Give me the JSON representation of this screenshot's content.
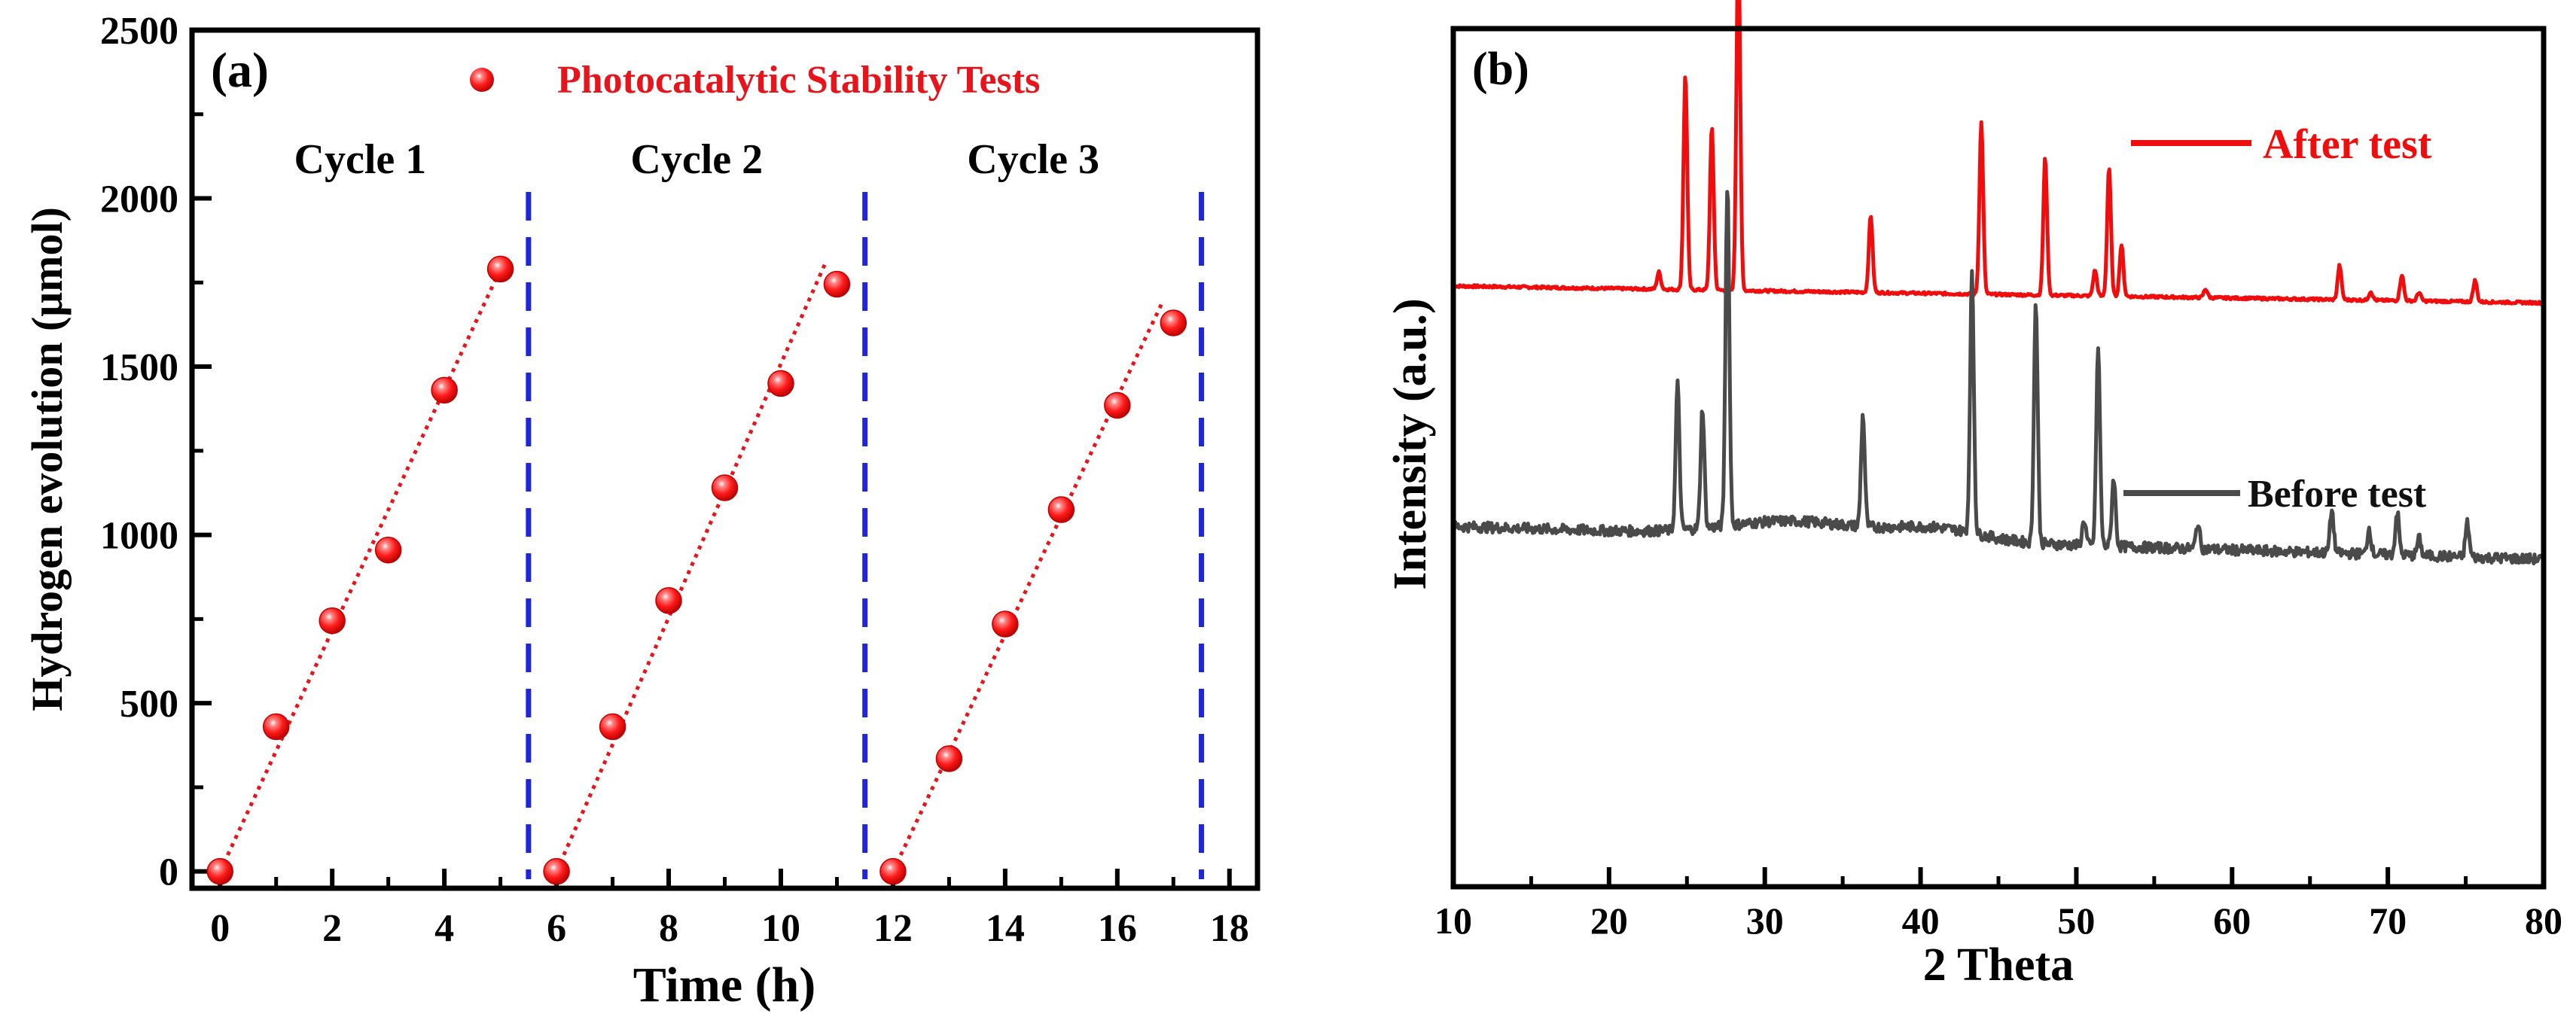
{
  "chart_data": [
    {
      "type": "scatter",
      "panel_label": "(a)",
      "title": "",
      "xlabel": "Time (h)",
      "ylabel": "Hydrogen evolution (μmol)",
      "xlim": [
        -0.5,
        18.5
      ],
      "ylim": [
        -50,
        2500
      ],
      "xticks": [
        0,
        2,
        4,
        6,
        8,
        10,
        12,
        14,
        16,
        18
      ],
      "yticks": [
        0,
        500,
        1000,
        1500,
        2000,
        2500
      ],
      "legend": {
        "label": "Photocatalytic Stability Tests",
        "position": "top-right"
      },
      "cycle_labels": [
        {
          "text": "Cycle 1",
          "x": 2.5
        },
        {
          "text": "Cycle 2",
          "x": 8.5
        },
        {
          "text": "Cycle 3",
          "x": 14.5
        }
      ],
      "dividers_x": [
        5.5,
        11.5,
        17.5
      ],
      "series": [
        {
          "name": "Cycle 1",
          "x": [
            0,
            1,
            2,
            3,
            4,
            5
          ],
          "y": [
            0,
            430,
            745,
            955,
            1430,
            1790
          ],
          "fit": [
            [
              0,
              0
            ],
            [
              5,
              1790
            ]
          ]
        },
        {
          "name": "Cycle 2",
          "x": [
            6,
            7,
            8,
            9,
            10,
            11
          ],
          "y": [
            0,
            430,
            805,
            1140,
            1450,
            1745
          ],
          "fit": [
            [
              6,
              0
            ],
            [
              10.8,
              1810
            ]
          ]
        },
        {
          "name": "Cycle 3",
          "x": [
            12,
            13,
            14,
            15,
            16,
            17
          ],
          "y": [
            0,
            335,
            735,
            1075,
            1385,
            1630
          ],
          "fit": [
            [
              12,
              0
            ],
            [
              16.8,
              1690
            ]
          ]
        }
      ],
      "colors": {
        "marker": "#e8141b",
        "fit": "#e8141b",
        "divider": "#1f26d9",
        "legend_text": "#e8141b"
      }
    },
    {
      "type": "line",
      "panel_label": "(b)",
      "title": "",
      "xlabel": "2 Theta",
      "ylabel": "Intensity (a.u.)",
      "xlim": [
        10,
        80
      ],
      "xticks": [
        10,
        20,
        30,
        40,
        50,
        60,
        70,
        80
      ],
      "series": [
        {
          "name": "After test",
          "color": "#f00d0d",
          "baseline": 0.7,
          "peaks": [
            [
              23.2,
              0.02
            ],
            [
              24.9,
              0.25
            ],
            [
              26.6,
              0.19
            ],
            [
              28.3,
              0.41
            ],
            [
              36.8,
              0.09
            ],
            [
              43.9,
              0.2
            ],
            [
              48.0,
              0.16
            ],
            [
              51.2,
              0.03
            ],
            [
              52.1,
              0.15
            ],
            [
              52.9,
              0.06
            ],
            [
              58.3,
              0.01
            ],
            [
              66.9,
              0.04
            ],
            [
              68.9,
              0.01
            ],
            [
              70.9,
              0.03
            ],
            [
              72.0,
              0.01
            ],
            [
              75.6,
              0.025
            ]
          ]
        },
        {
          "name": "Before test",
          "color": "#4a4a4a",
          "baseline": 0.42,
          "peaks": [
            [
              24.4,
              0.17
            ],
            [
              26.0,
              0.14
            ],
            [
              27.6,
              0.4
            ],
            [
              36.3,
              0.13
            ],
            [
              43.3,
              0.3
            ],
            [
              47.4,
              0.28
            ],
            [
              51.4,
              0.23
            ],
            [
              52.4,
              0.08
            ],
            [
              50.5,
              0.03
            ],
            [
              57.8,
              0.03
            ],
            [
              66.4,
              0.05
            ],
            [
              68.8,
              0.03
            ],
            [
              70.6,
              0.05
            ],
            [
              72.0,
              0.02
            ],
            [
              75.1,
              0.04
            ]
          ]
        }
      ]
    }
  ]
}
